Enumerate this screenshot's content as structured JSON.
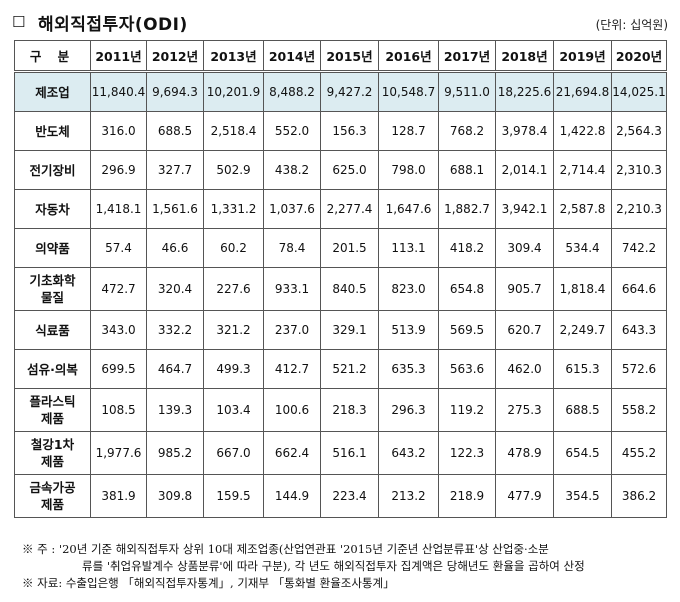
{
  "header": {
    "checkbox": "☐",
    "title": "해외직접투자(ODI)",
    "unit": "(단위: 십억원)"
  },
  "table": {
    "columns": [
      "구  분",
      "2011년",
      "2012년",
      "2013년",
      "2014년",
      "2015년",
      "2016년",
      "2017년",
      "2018년",
      "2019년",
      "2020년"
    ],
    "rows": [
      {
        "label": "제조업",
        "values": [
          "11,840.4",
          "9,694.3",
          "10,201.9",
          "8,488.2",
          "9,427.2",
          "10,548.7",
          "9,511.0",
          "18,225.6",
          "21,694.8",
          "14,025.1"
        ]
      },
      {
        "label": "반도체",
        "values": [
          "316.0",
          "688.5",
          "2,518.4",
          "552.0",
          "156.3",
          "128.7",
          "768.2",
          "3,978.4",
          "1,422.8",
          "2,564.3"
        ]
      },
      {
        "label": "전기장비",
        "values": [
          "296.9",
          "327.7",
          "502.9",
          "438.2",
          "625.0",
          "798.0",
          "688.1",
          "2,014.1",
          "2,714.4",
          "2,310.3"
        ]
      },
      {
        "label": "자동차",
        "values": [
          "1,418.1",
          "1,561.6",
          "1,331.2",
          "1,037.6",
          "2,277.4",
          "1,647.6",
          "1,882.7",
          "3,942.1",
          "2,587.8",
          "2,210.3"
        ]
      },
      {
        "label": "의약품",
        "values": [
          "57.4",
          "46.6",
          "60.2",
          "78.4",
          "201.5",
          "113.1",
          "418.2",
          "309.4",
          "534.4",
          "742.2"
        ]
      },
      {
        "label1": "기초화학",
        "label2": "물질",
        "values": [
          "472.7",
          "320.4",
          "227.6",
          "933.1",
          "840.5",
          "823.0",
          "654.8",
          "905.7",
          "1,818.4",
          "664.6"
        ]
      },
      {
        "label": "식료품",
        "values": [
          "343.0",
          "332.2",
          "321.2",
          "237.0",
          "329.1",
          "513.9",
          "569.5",
          "620.7",
          "2,249.7",
          "643.3"
        ]
      },
      {
        "label": "섬유·의복",
        "values": [
          "699.5",
          "464.7",
          "499.3",
          "412.7",
          "521.2",
          "635.3",
          "563.6",
          "462.0",
          "615.3",
          "572.6"
        ]
      },
      {
        "label1": "플라스틱",
        "label2": "제품",
        "values": [
          "108.5",
          "139.3",
          "103.4",
          "100.6",
          "218.3",
          "296.3",
          "119.2",
          "275.3",
          "688.5",
          "558.2"
        ]
      },
      {
        "label1": "철강1차",
        "label2": "제품",
        "values": [
          "1,977.6",
          "985.2",
          "667.0",
          "662.4",
          "516.1",
          "643.2",
          "122.3",
          "478.9",
          "654.5",
          "455.2"
        ]
      },
      {
        "label1": "금속가공",
        "label2": "제품",
        "values": [
          "381.9",
          "309.8",
          "159.5",
          "144.9",
          "223.4",
          "213.2",
          "218.9",
          "477.9",
          "354.5",
          "386.2"
        ]
      }
    ]
  },
  "notes": {
    "line1": "※ 주 : '20년 기준 해외직접투자 상위 10대 제조업종(산업연관표 '2015년 기준년 산업분류표'상 산업중·소분",
    "line2": "류를 '취업유발계수 상품분류'에 따라 구분), 각 년도 해외직접투자 집계액은 당해년도 환율을 곱하여 산정",
    "line3": "※ 자료: 수출입은행 「해외직접투자통계」, 기재부 「통화별 환율조사통계」"
  }
}
